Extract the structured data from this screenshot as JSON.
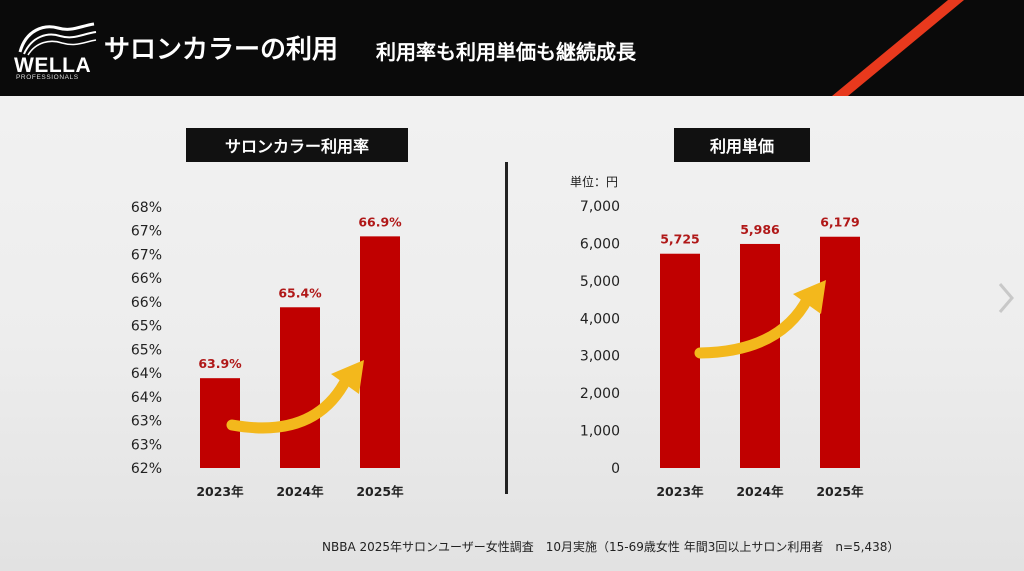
{
  "header": {
    "logo_main": "WELLA",
    "logo_sub": "PROFESSIONALS",
    "title": "サロンカラーの利用",
    "subtitle": "利用率も利用単価も継続成長",
    "accent_color": "#e8391d"
  },
  "bar_color": "#c00000",
  "arrow_color": "#f3b81c",
  "chart_data": [
    {
      "type": "bar",
      "title": "サロンカラー利用率",
      "categories": [
        "2023年",
        "2024年",
        "2025年"
      ],
      "values": [
        63.9,
        65.4,
        66.9
      ],
      "data_labels": [
        "63.9%",
        "65.4%",
        "66.9%"
      ],
      "yticks": [
        "62%",
        "63%",
        "63%",
        "64%",
        "64%",
        "65%",
        "65%",
        "66%",
        "66%",
        "67%",
        "67%",
        "68%"
      ],
      "ylim": [
        62,
        67.5
      ],
      "ylabel": "",
      "grid": false
    },
    {
      "type": "bar",
      "title": "利用単価",
      "categories": [
        "2023年",
        "2024年",
        "2025年"
      ],
      "values": [
        5725,
        5986,
        6179
      ],
      "data_labels": [
        "5,725",
        "5,986",
        "6,179"
      ],
      "yticks": [
        "0",
        "1,000",
        "2,000",
        "3,000",
        "4,000",
        "5,000",
        "6,000",
        "7,000"
      ],
      "ylim": [
        0,
        7000
      ],
      "unit_label": "単位：円",
      "grid": false
    }
  ],
  "footnote": "NBBA 2025年サロンユーザー女性調査　10月実施（15-69歳女性 年間3回以上サロン利用者　n=5,438）",
  "nav": {
    "next_icon": "chevron-right-icon"
  }
}
